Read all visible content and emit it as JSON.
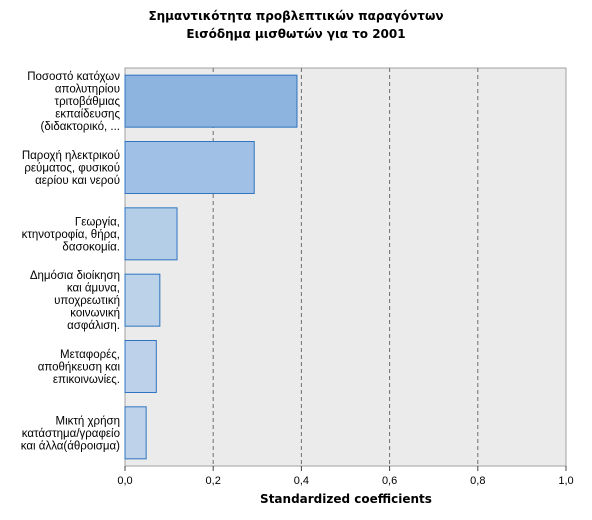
{
  "chart_data": {
    "type": "bar",
    "orientation": "horizontal",
    "title": "Σημαντικότητα προβλεπτικών παραγόντων",
    "subtitle": "Εισόδημα μισθωτών για το 2001",
    "xlabel": "Standardized coefficients",
    "ylabel": "",
    "xlim": [
      0,
      1.0
    ],
    "x_ticks": [
      "0,0",
      "0,2",
      "0,4",
      "0,6",
      "0,8",
      "1,0"
    ],
    "x_tick_values": [
      0,
      0.2,
      0.4,
      0.6,
      0.8,
      1.0
    ],
    "grid": "vertical dashed",
    "categories": [
      [
        "Ποσοστό κατόχων",
        "απολυτηρίου",
        "τριτοβάθμιας",
        "εκπαίδευσης",
        "(διδακτορικό, ..."
      ],
      [
        "Παροχή ηλεκτρικού",
        "ρεύματος, φυσικού",
        "αερίου και νερού"
      ],
      [
        "Γεωργία,",
        "κτηνοτροφία, θήρα,",
        "δασοκομία."
      ],
      [
        "Δημόσια διοίκηση",
        "και άμυνα,",
        "υποχρεωτική",
        "κοινωνική",
        "ασφάλιση."
      ],
      [
        "Μεταφορές,",
        "αποθήκευση και",
        "επικοινωνίες."
      ],
      [
        "Μικτή χρήση",
        "κατάστημα/γραφείο",
        "και άλλα(άθροισμα)"
      ]
    ],
    "values": [
      0.39,
      0.293,
      0.118,
      0.079,
      0.071,
      0.048
    ],
    "colors": {
      "plot_background": "#ebebeb",
      "bar_fills": [
        "#8db3df",
        "#a0c1e5",
        "#b5cee8",
        "#bcd2e9",
        "#bdd2ea",
        "#bed3ea"
      ],
      "bar_edge": "#2f74c0",
      "grid": "#6e6e6e"
    }
  }
}
